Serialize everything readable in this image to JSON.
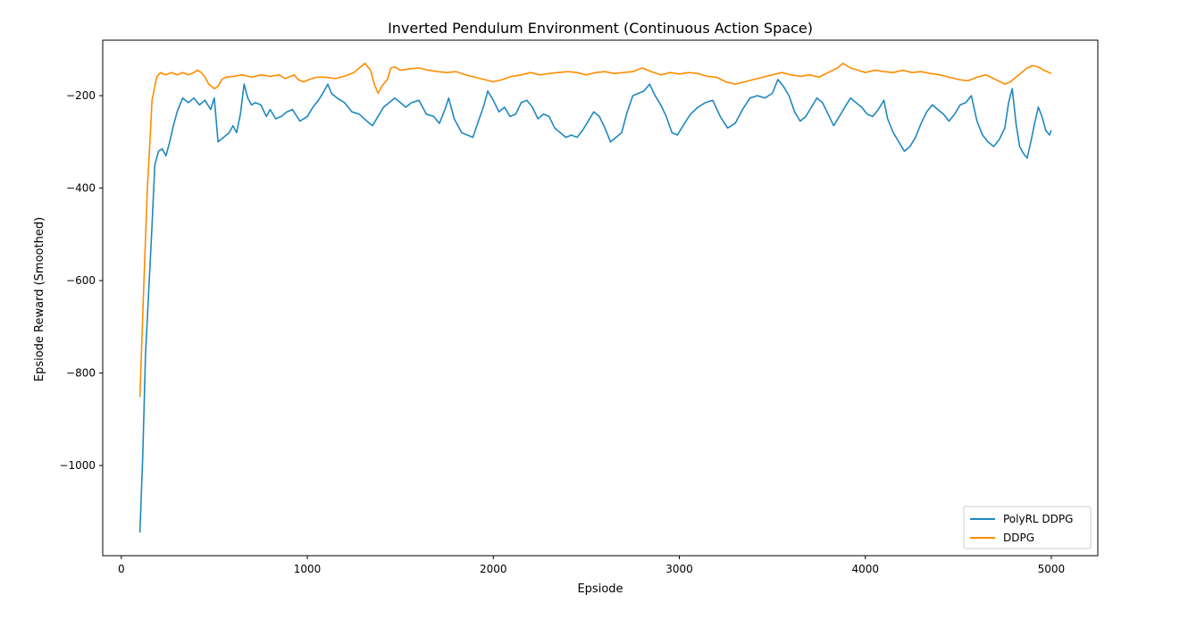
{
  "chart_data": {
    "type": "line",
    "title": "Inverted Pendulum Environment (Continuous Action Space)",
    "xlabel": "Epsiode",
    "ylabel": "Epsiode Reward (Smoothed)",
    "xlim": [
      -100,
      5250
    ],
    "ylim": [
      -1195,
      -80
    ],
    "xticks": [
      0,
      1000,
      2000,
      3000,
      4000,
      5000
    ],
    "yticks": [
      -1000,
      -800,
      -600,
      -400,
      -200
    ],
    "grid": false,
    "legend_position": "lower-right",
    "series": [
      {
        "name": "PolyRL DDPG",
        "color": "#1f88c0",
        "points": [
          [
            100,
            -1145
          ],
          [
            115,
            -980
          ],
          [
            130,
            -760
          ],
          [
            150,
            -600
          ],
          [
            165,
            -480
          ],
          [
            180,
            -350
          ],
          [
            200,
            -320
          ],
          [
            220,
            -315
          ],
          [
            240,
            -330
          ],
          [
            260,
            -300
          ],
          [
            280,
            -265
          ],
          [
            300,
            -235
          ],
          [
            330,
            -205
          ],
          [
            360,
            -215
          ],
          [
            390,
            -205
          ],
          [
            420,
            -220
          ],
          [
            450,
            -210
          ],
          [
            480,
            -230
          ],
          [
            500,
            -205
          ],
          [
            520,
            -300
          ],
          [
            550,
            -290
          ],
          [
            580,
            -280
          ],
          [
            600,
            -265
          ],
          [
            620,
            -280
          ],
          [
            640,
            -240
          ],
          [
            660,
            -175
          ],
          [
            680,
            -205
          ],
          [
            700,
            -220
          ],
          [
            720,
            -215
          ],
          [
            750,
            -220
          ],
          [
            780,
            -245
          ],
          [
            800,
            -230
          ],
          [
            830,
            -250
          ],
          [
            860,
            -245
          ],
          [
            890,
            -235
          ],
          [
            920,
            -230
          ],
          [
            960,
            -255
          ],
          [
            1000,
            -245
          ],
          [
            1030,
            -225
          ],
          [
            1060,
            -210
          ],
          [
            1090,
            -190
          ],
          [
            1110,
            -175
          ],
          [
            1130,
            -195
          ],
          [
            1160,
            -205
          ],
          [
            1200,
            -215
          ],
          [
            1240,
            -235
          ],
          [
            1280,
            -240
          ],
          [
            1320,
            -255
          ],
          [
            1350,
            -265
          ],
          [
            1380,
            -245
          ],
          [
            1410,
            -225
          ],
          [
            1440,
            -215
          ],
          [
            1470,
            -205
          ],
          [
            1500,
            -215
          ],
          [
            1530,
            -225
          ],
          [
            1560,
            -215
          ],
          [
            1600,
            -210
          ],
          [
            1640,
            -240
          ],
          [
            1680,
            -245
          ],
          [
            1710,
            -260
          ],
          [
            1740,
            -230
          ],
          [
            1760,
            -205
          ],
          [
            1790,
            -250
          ],
          [
            1830,
            -280
          ],
          [
            1860,
            -285
          ],
          [
            1890,
            -290
          ],
          [
            1920,
            -255
          ],
          [
            1950,
            -220
          ],
          [
            1970,
            -190
          ],
          [
            2000,
            -210
          ],
          [
            2030,
            -235
          ],
          [
            2060,
            -225
          ],
          [
            2090,
            -245
          ],
          [
            2120,
            -240
          ],
          [
            2150,
            -215
          ],
          [
            2180,
            -210
          ],
          [
            2210,
            -225
          ],
          [
            2240,
            -250
          ],
          [
            2270,
            -240
          ],
          [
            2300,
            -245
          ],
          [
            2330,
            -270
          ],
          [
            2360,
            -280
          ],
          [
            2390,
            -290
          ],
          [
            2420,
            -285
          ],
          [
            2450,
            -290
          ],
          [
            2480,
            -275
          ],
          [
            2510,
            -255
          ],
          [
            2540,
            -235
          ],
          [
            2570,
            -245
          ],
          [
            2600,
            -270
          ],
          [
            2630,
            -300
          ],
          [
            2660,
            -290
          ],
          [
            2690,
            -280
          ],
          [
            2720,
            -235
          ],
          [
            2750,
            -200
          ],
          [
            2780,
            -195
          ],
          [
            2810,
            -190
          ],
          [
            2840,
            -175
          ],
          [
            2870,
            -200
          ],
          [
            2900,
            -220
          ],
          [
            2930,
            -245
          ],
          [
            2960,
            -280
          ],
          [
            2990,
            -285
          ],
          [
            3020,
            -265
          ],
          [
            3060,
            -240
          ],
          [
            3100,
            -225
          ],
          [
            3140,
            -215
          ],
          [
            3180,
            -210
          ],
          [
            3220,
            -245
          ],
          [
            3260,
            -270
          ],
          [
            3300,
            -260
          ],
          [
            3340,
            -230
          ],
          [
            3380,
            -205
          ],
          [
            3420,
            -200
          ],
          [
            3460,
            -205
          ],
          [
            3500,
            -195
          ],
          [
            3530,
            -165
          ],
          [
            3560,
            -180
          ],
          [
            3590,
            -200
          ],
          [
            3620,
            -235
          ],
          [
            3650,
            -255
          ],
          [
            3680,
            -245
          ],
          [
            3710,
            -225
          ],
          [
            3740,
            -205
          ],
          [
            3770,
            -215
          ],
          [
            3800,
            -240
          ],
          [
            3830,
            -265
          ],
          [
            3860,
            -245
          ],
          [
            3890,
            -225
          ],
          [
            3920,
            -205
          ],
          [
            3950,
            -215
          ],
          [
            3980,
            -225
          ],
          [
            4010,
            -240
          ],
          [
            4040,
            -245
          ],
          [
            4070,
            -230
          ],
          [
            4100,
            -210
          ],
          [
            4120,
            -250
          ],
          [
            4150,
            -280
          ],
          [
            4180,
            -300
          ],
          [
            4210,
            -320
          ],
          [
            4240,
            -310
          ],
          [
            4270,
            -290
          ],
          [
            4300,
            -260
          ],
          [
            4330,
            -235
          ],
          [
            4360,
            -220
          ],
          [
            4390,
            -230
          ],
          [
            4420,
            -240
          ],
          [
            4450,
            -255
          ],
          [
            4480,
            -240
          ],
          [
            4510,
            -220
          ],
          [
            4540,
            -215
          ],
          [
            4570,
            -200
          ],
          [
            4600,
            -255
          ],
          [
            4630,
            -285
          ],
          [
            4660,
            -300
          ],
          [
            4690,
            -310
          ],
          [
            4720,
            -295
          ],
          [
            4750,
            -270
          ],
          [
            4770,
            -215
          ],
          [
            4790,
            -185
          ],
          [
            4810,
            -260
          ],
          [
            4830,
            -310
          ],
          [
            4850,
            -325
          ],
          [
            4870,
            -335
          ],
          [
            4890,
            -300
          ],
          [
            4910,
            -260
          ],
          [
            4930,
            -225
          ],
          [
            4950,
            -245
          ],
          [
            4970,
            -275
          ],
          [
            4990,
            -285
          ],
          [
            5000,
            -275
          ]
        ]
      },
      {
        "name": "DDPG",
        "color": "#ff8c00",
        "points": [
          [
            100,
            -852
          ],
          [
            120,
            -620
          ],
          [
            140,
            -400
          ],
          [
            155,
            -290
          ],
          [
            165,
            -210
          ],
          [
            175,
            -190
          ],
          [
            190,
            -160
          ],
          [
            210,
            -150
          ],
          [
            240,
            -155
          ],
          [
            270,
            -150
          ],
          [
            300,
            -155
          ],
          [
            330,
            -150
          ],
          [
            360,
            -155
          ],
          [
            390,
            -150
          ],
          [
            410,
            -145
          ],
          [
            430,
            -150
          ],
          [
            450,
            -160
          ],
          [
            470,
            -175
          ],
          [
            500,
            -185
          ],
          [
            520,
            -180
          ],
          [
            540,
            -165
          ],
          [
            560,
            -160
          ],
          [
            600,
            -158
          ],
          [
            650,
            -155
          ],
          [
            700,
            -160
          ],
          [
            750,
            -155
          ],
          [
            800,
            -158
          ],
          [
            850,
            -155
          ],
          [
            880,
            -163
          ],
          [
            900,
            -160
          ],
          [
            930,
            -155
          ],
          [
            950,
            -165
          ],
          [
            980,
            -170
          ],
          [
            1010,
            -165
          ],
          [
            1050,
            -160
          ],
          [
            1100,
            -160
          ],
          [
            1150,
            -163
          ],
          [
            1200,
            -158
          ],
          [
            1250,
            -150
          ],
          [
            1280,
            -140
          ],
          [
            1310,
            -130
          ],
          [
            1340,
            -145
          ],
          [
            1360,
            -175
          ],
          [
            1380,
            -195
          ],
          [
            1400,
            -180
          ],
          [
            1430,
            -165
          ],
          [
            1450,
            -140
          ],
          [
            1470,
            -138
          ],
          [
            1500,
            -145
          ],
          [
            1550,
            -142
          ],
          [
            1600,
            -140
          ],
          [
            1650,
            -145
          ],
          [
            1700,
            -148
          ],
          [
            1750,
            -150
          ],
          [
            1800,
            -148
          ],
          [
            1850,
            -155
          ],
          [
            1900,
            -160
          ],
          [
            1950,
            -165
          ],
          [
            2000,
            -170
          ],
          [
            2050,
            -165
          ],
          [
            2100,
            -158
          ],
          [
            2150,
            -155
          ],
          [
            2200,
            -150
          ],
          [
            2250,
            -155
          ],
          [
            2300,
            -152
          ],
          [
            2350,
            -150
          ],
          [
            2400,
            -148
          ],
          [
            2450,
            -150
          ],
          [
            2500,
            -155
          ],
          [
            2550,
            -150
          ],
          [
            2600,
            -148
          ],
          [
            2650,
            -152
          ],
          [
            2700,
            -150
          ],
          [
            2750,
            -148
          ],
          [
            2800,
            -140
          ],
          [
            2850,
            -148
          ],
          [
            2900,
            -155
          ],
          [
            2950,
            -150
          ],
          [
            3000,
            -153
          ],
          [
            3050,
            -150
          ],
          [
            3100,
            -152
          ],
          [
            3150,
            -158
          ],
          [
            3200,
            -160
          ],
          [
            3250,
            -170
          ],
          [
            3300,
            -175
          ],
          [
            3350,
            -170
          ],
          [
            3400,
            -165
          ],
          [
            3450,
            -160
          ],
          [
            3500,
            -155
          ],
          [
            3550,
            -150
          ],
          [
            3600,
            -155
          ],
          [
            3650,
            -158
          ],
          [
            3700,
            -155
          ],
          [
            3750,
            -160
          ],
          [
            3800,
            -150
          ],
          [
            3850,
            -140
          ],
          [
            3880,
            -130
          ],
          [
            3920,
            -140
          ],
          [
            3960,
            -145
          ],
          [
            4000,
            -150
          ],
          [
            4050,
            -145
          ],
          [
            4100,
            -148
          ],
          [
            4150,
            -150
          ],
          [
            4200,
            -145
          ],
          [
            4250,
            -150
          ],
          [
            4300,
            -148
          ],
          [
            4350,
            -152
          ],
          [
            4400,
            -155
          ],
          [
            4450,
            -160
          ],
          [
            4500,
            -165
          ],
          [
            4550,
            -168
          ],
          [
            4600,
            -160
          ],
          [
            4650,
            -155
          ],
          [
            4700,
            -165
          ],
          [
            4750,
            -175
          ],
          [
            4780,
            -170
          ],
          [
            4810,
            -160
          ],
          [
            4840,
            -150
          ],
          [
            4870,
            -140
          ],
          [
            4900,
            -135
          ],
          [
            4930,
            -138
          ],
          [
            4960,
            -145
          ],
          [
            5000,
            -152
          ]
        ]
      }
    ]
  }
}
